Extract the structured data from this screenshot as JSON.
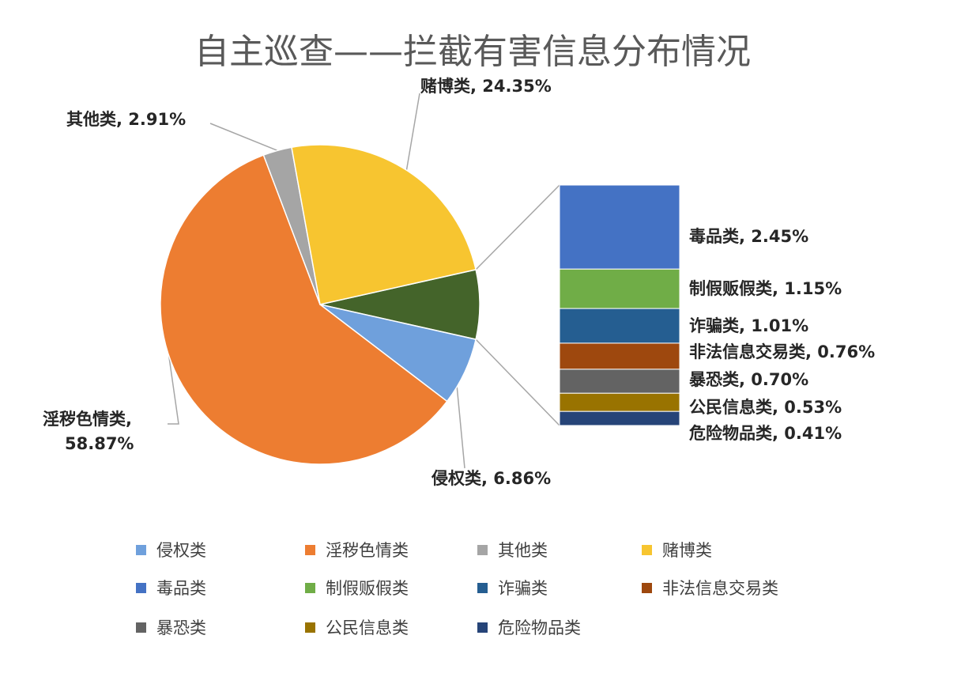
{
  "chart_data": {
    "type": "pie",
    "subtype": "bar-of-pie",
    "title": "自主巡查——拦截有害信息分布情况",
    "categories": [
      "侵权类",
      "淫秽色情类",
      "其他类",
      "赌博类",
      "毒品类",
      "制假贩假类",
      "诈骗类",
      "非法信息交易类",
      "暴恐类",
      "公民信息类",
      "危险物品类"
    ],
    "values": [
      6.86,
      58.87,
      2.91,
      24.35,
      2.45,
      1.15,
      1.01,
      0.76,
      0.7,
      0.53,
      0.41
    ],
    "value_labels": [
      "6.86%",
      "58.87%",
      "2.91%",
      "24.35%",
      "2.45%",
      "1.15%",
      "1.01%",
      "0.76%",
      "0.70%",
      "0.53%",
      "0.41%"
    ],
    "unit": "%",
    "colors": [
      "#6fa0dc",
      "#ed7d31",
      "#a5a5a5",
      "#f7c530",
      "#4472c4",
      "#70ad47",
      "#255e91",
      "#9e480e",
      "#636363",
      "#997300",
      "#264478"
    ],
    "pie_slices": [
      "侵权类",
      "淫秽色情类",
      "其他类",
      "赌博类"
    ],
    "bar_of_pie": {
      "secondary_slice_color": "#44642a",
      "stack": [
        "毒品类",
        "制假贩假类",
        "诈骗类",
        "非法信息交易类",
        "暴恐类",
        "公民信息类",
        "危险物品类"
      ]
    },
    "legend": {
      "position": "bottom",
      "entries": [
        "侵权类",
        "淫秽色情类",
        "其他类",
        "赌博类",
        "毒品类",
        "制假贩假类",
        "诈骗类",
        "非法信息交易类",
        "暴恐类",
        "公民信息类",
        "危险物品类"
      ]
    },
    "grid": false
  }
}
